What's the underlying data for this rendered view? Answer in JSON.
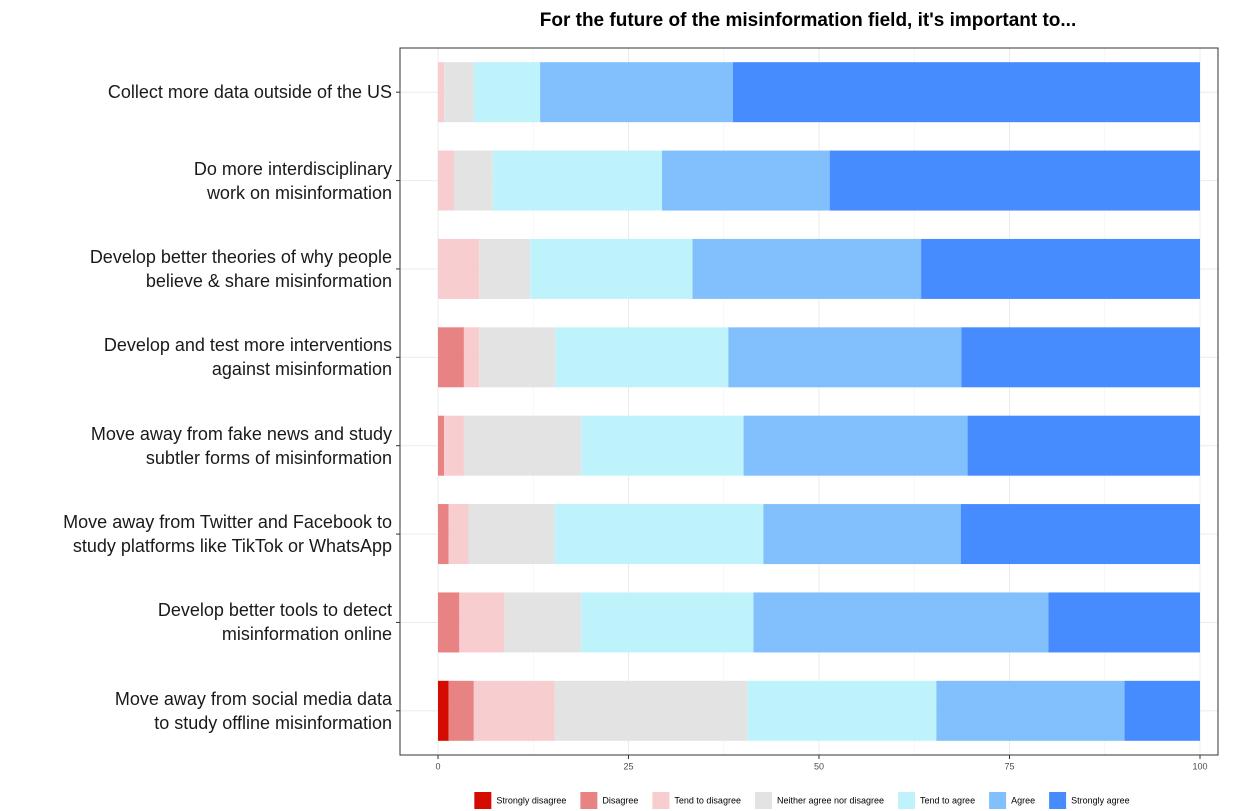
{
  "chart_data": {
    "type": "stacked_bar_horizontal",
    "title": "For the future of the misinformation field, it's important to...",
    "categories": [
      "Collect more data outside of the US",
      "Do more interdisciplinary\nwork on misinformation",
      "Develop better theories of why people\nbelieve & share misinformation",
      "Develop and test more interventions\nagainst misinformation",
      "Move away from fake news and study\nsubtler forms of misinformation",
      "Move away from Twitter and Facebook to\nstudy platforms like TikTok or WhatsApp",
      "Develop better tools to detect\nmisinformation online",
      "Move away from social media data\nto study offline misinformation"
    ],
    "series": [
      {
        "name": "Strongly disagree",
        "color": "#d40c00",
        "values": [
          0,
          0,
          0,
          0,
          0,
          0,
          0,
          1.4
        ]
      },
      {
        "name": "Disagree",
        "color": "#e88383",
        "values": [
          0,
          0,
          0,
          3.4,
          0.8,
          1.4,
          2.8,
          3.3
        ]
      },
      {
        "name": "Tend to disagree",
        "color": "#f7cdcf",
        "values": [
          0.8,
          2.1,
          5.4,
          2.0,
          2.6,
          2.6,
          5.9,
          10.6
        ]
      },
      {
        "name": "Neither agree nor disagree",
        "color": "#e3e3e3",
        "values": [
          3.9,
          5.1,
          6.7,
          10.0,
          15.4,
          11.3,
          10.1,
          25.3
        ]
      },
      {
        "name": "Tend to agree",
        "color": "#bff3fc",
        "values": [
          8.7,
          22.2,
          21.3,
          22.7,
          21.3,
          27.4,
          22.6,
          24.8
        ]
      },
      {
        "name": "Agree",
        "color": "#82c0fd",
        "values": [
          25.3,
          22.0,
          30.0,
          30.6,
          29.4,
          25.9,
          38.7,
          24.7
        ]
      },
      {
        "name": "Strongly agree",
        "color": "#468cff",
        "values": [
          61.3,
          48.6,
          36.6,
          31.3,
          30.5,
          31.4,
          19.9,
          9.9
        ]
      }
    ],
    "xlim": [
      0,
      100
    ],
    "xticks": [
      0,
      25,
      50,
      75,
      100
    ],
    "grid": true,
    "legend": "bottom"
  }
}
